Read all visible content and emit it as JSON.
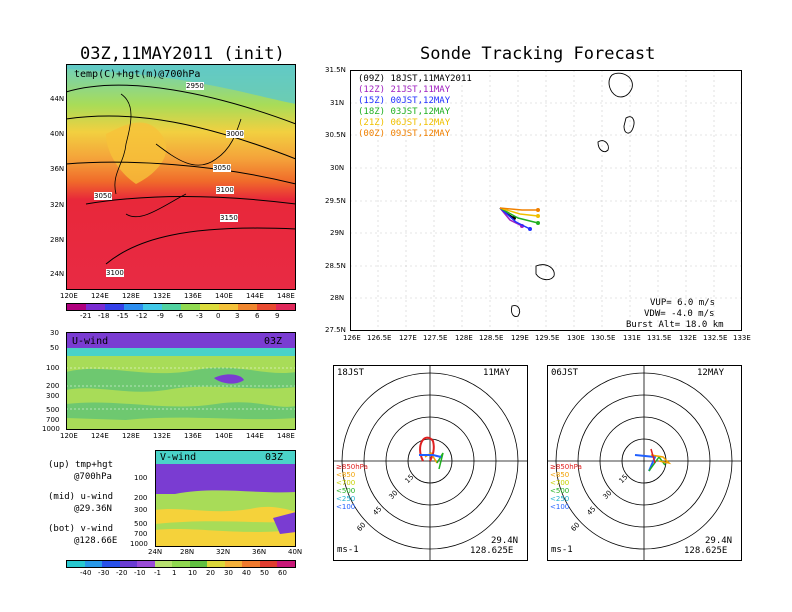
{
  "left_title": "03Z,11MAY2011 (init)",
  "right_title": "Sonde Tracking Forecast",
  "map_panel": {
    "label": "temp(C)+hgt(m)@700hPa",
    "lat_labels": [
      "44N",
      "40N",
      "36N",
      "32N",
      "28N",
      "24N"
    ],
    "lon_labels": [
      "120E",
      "124E",
      "128E",
      "132E",
      "136E",
      "140E",
      "144E",
      "148E"
    ],
    "contours": [
      "2950",
      "3000",
      "3050",
      "3100",
      "3050",
      "3150",
      "3100"
    ],
    "colorbar": [
      "-21",
      "-18",
      "-15",
      "-12",
      "-9",
      "-6",
      "-3",
      "0",
      "3",
      "6",
      "9"
    ]
  },
  "u_panel": {
    "label": "U-wind",
    "time": "03Z",
    "p_labels": [
      "30",
      "50",
      "100",
      "200",
      "300",
      "500",
      "700",
      "1000"
    ],
    "lon_labels": [
      "120E",
      "124E",
      "128E",
      "132E",
      "136E",
      "140E",
      "144E",
      "148E"
    ]
  },
  "v_panel": {
    "label": "V-wind",
    "time": "03Z",
    "p_labels": [
      "100",
      "200",
      "300",
      "500",
      "700",
      "1000"
    ],
    "lat_labels": [
      "24N",
      "28N",
      "32N",
      "36N",
      "40N"
    ]
  },
  "legend_notes": {
    "up1": "(up) tmp+hgt",
    "up2": "@700hPa",
    "mid1": "(mid) u-wind",
    "mid2": "@29.36N",
    "bot1": "(bot) v-wind",
    "bot2": "@128.66E"
  },
  "wind_colorbar": [
    "-40",
    "-30",
    "-20",
    "-10",
    "-1",
    "1",
    "10",
    "20",
    "30",
    "40",
    "50",
    "60"
  ],
  "track_map": {
    "lat_labels": [
      "31.5N",
      "31N",
      "30.5N",
      "30N",
      "29.5N",
      "29N",
      "28.5N",
      "28N",
      "27.5N"
    ],
    "lon_labels": [
      "126E",
      "126.5E",
      "127E",
      "127.5E",
      "128E",
      "128.5E",
      "129E",
      "129.5E",
      "130E",
      "130.5E",
      "131E",
      "131.5E",
      "132E",
      "132.5E",
      "133E"
    ],
    "legend": [
      {
        "text": "(09Z) 18JST,11MAY2011",
        "color": "#000000"
      },
      {
        "text": "(12Z) 21JST,11MAY",
        "color": "#a020c0"
      },
      {
        "text": "(15Z) 00JST,12MAY",
        "color": "#2030ff"
      },
      {
        "text": "(18Z) 03JST,12MAY",
        "color": "#20b020"
      },
      {
        "text": "(21Z) 06JST,12MAY",
        "color": "#f0c000"
      },
      {
        "text": "(00Z) 09JST,12MAY",
        "color": "#f08000"
      }
    ],
    "params": {
      "vup": "VUP= 6.0 m/s",
      "vdw": "VDW= -4.0 m/s",
      "burst": "Burst Alt= 18.0 km"
    }
  },
  "hodo_left": {
    "time": "18JST",
    "date": "11MAY",
    "rings": [
      "15",
      "30",
      "45",
      "60"
    ],
    "levels": [
      "≥850hPa",
      "<850",
      "<700",
      "<500",
      "<250",
      "<100"
    ],
    "unit": "ms-1",
    "lat": "29.4N",
    "lon": "128.625E"
  },
  "hodo_right": {
    "time": "06JST",
    "date": "12MAY",
    "rings": [
      "15",
      "30",
      "45",
      "60"
    ],
    "levels": [
      "≥850hPa",
      "<850",
      "<700",
      "<500",
      "<250",
      "<100"
    ],
    "unit": "ms-1",
    "lat": "29.4N",
    "lon": "128.625E"
  },
  "colors": {
    "warm": "#e8283a",
    "orange": "#f07a28",
    "yellow": "#f5d23a",
    "green": "#8ed250",
    "cyan": "#4ad2c8",
    "purple": "#7a3cd2"
  }
}
